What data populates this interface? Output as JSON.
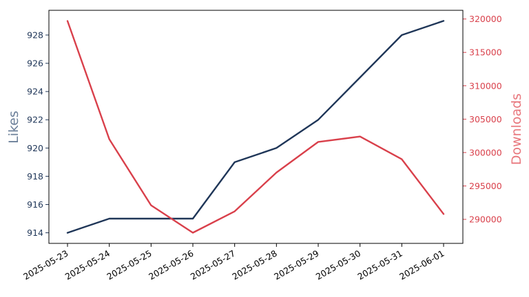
{
  "chart_data": {
    "type": "line",
    "title": "",
    "xlabel": "",
    "x": [
      "2025-05-23",
      "2025-05-24",
      "2025-05-25",
      "2025-05-26",
      "2025-05-27",
      "2025-05-28",
      "2025-05-29",
      "2025-05-30",
      "2025-05-31",
      "2025-06-01"
    ],
    "series": [
      {
        "name": "Likes",
        "axis": "left",
        "color": "#1f3658",
        "values": [
          914,
          915,
          915,
          915,
          919,
          920,
          922,
          925,
          928,
          929
        ]
      },
      {
        "name": "Downloads",
        "axis": "right",
        "color": "#d9404b",
        "values": [
          319700,
          302000,
          292100,
          288000,
          291200,
          297000,
          301600,
          302400,
          299000,
          290800
        ]
      }
    ],
    "y_left": {
      "label": "Likes",
      "ticks": [
        914,
        916,
        918,
        920,
        922,
        924,
        926,
        928
      ],
      "range": [
        913.25,
        929.75
      ]
    },
    "y_right": {
      "label": "Downloads",
      "ticks": [
        290000,
        295000,
        300000,
        305000,
        310000,
        315000,
        320000
      ],
      "range": [
        286400,
        321300
      ]
    },
    "grid": false,
    "legend": "none"
  }
}
